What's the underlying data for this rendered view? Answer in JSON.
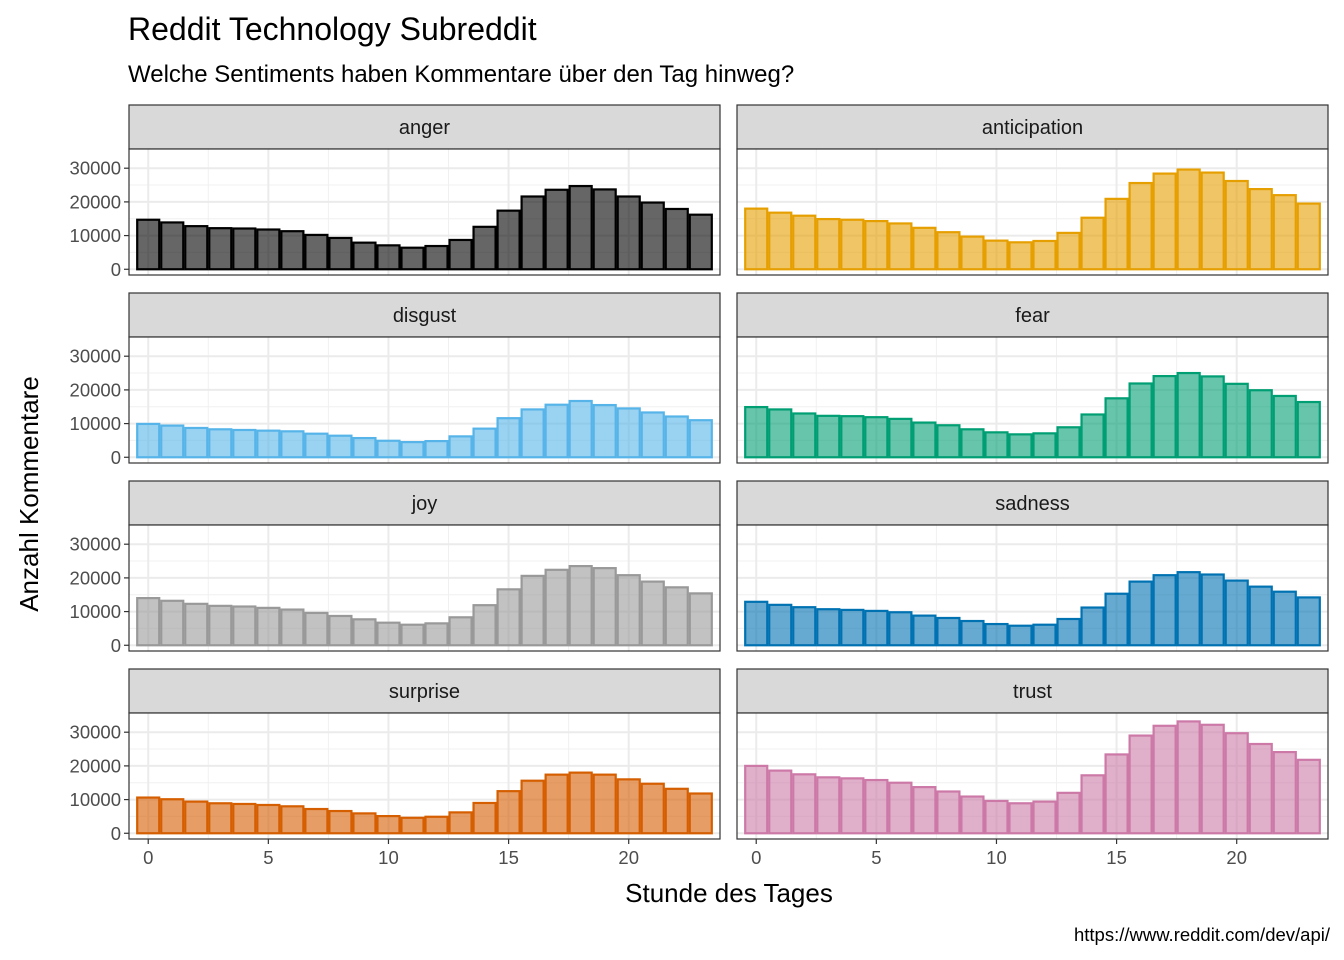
{
  "chart_data": {
    "type": "bar",
    "title": "Reddit Technology Subreddit",
    "subtitle": "Welche Sentiments haben Kommentare über den Tag hinweg?",
    "xlabel": "Stunde des Tages",
    "ylabel": "Anzahl Kommentare",
    "caption": "https://www.reddit.com/dev/api/",
    "x_ticks": [
      "0",
      "5",
      "10",
      "15",
      "20"
    ],
    "y_ticks": [
      "0",
      "10000",
      "20000",
      "30000"
    ],
    "xlim": [
      -0.8,
      23.8
    ],
    "ylim": [
      -1700,
      35700
    ],
    "grid": true,
    "legend": "none",
    "x": [
      0,
      1,
      2,
      3,
      4,
      5,
      6,
      7,
      8,
      9,
      10,
      11,
      12,
      13,
      14,
      15,
      16,
      17,
      18,
      19,
      20,
      21,
      22,
      23
    ],
    "panels": [
      {
        "name": "anger",
        "fill": "#000000",
        "stroke": "#000000",
        "values": [
          14700,
          13900,
          12800,
          12200,
          12100,
          11800,
          11300,
          10200,
          9300,
          7900,
          7100,
          6400,
          6900,
          8700,
          12600,
          17400,
          21600,
          23600,
          24700,
          23700,
          21600,
          19800,
          17900,
          16200
        ]
      },
      {
        "name": "anticipation",
        "fill": "#E69F00",
        "stroke": "#E69F00",
        "values": [
          18000,
          16800,
          15900,
          14900,
          14700,
          14300,
          13600,
          12300,
          11000,
          9700,
          8500,
          8000,
          8400,
          10800,
          15300,
          20900,
          25600,
          28400,
          29600,
          28700,
          26200,
          23800,
          22000,
          19500
        ]
      },
      {
        "name": "disgust",
        "fill": "#56B4E9",
        "stroke": "#56B4E9",
        "values": [
          9900,
          9400,
          8700,
          8300,
          8100,
          7900,
          7700,
          7000,
          6400,
          5700,
          4900,
          4500,
          4800,
          6200,
          8500,
          11600,
          14200,
          15600,
          16700,
          15500,
          14500,
          13300,
          12100,
          11000
        ]
      },
      {
        "name": "fear",
        "fill": "#009E73",
        "stroke": "#009E73",
        "values": [
          14900,
          14200,
          13000,
          12300,
          12200,
          11900,
          11400,
          10300,
          9500,
          8300,
          7400,
          6800,
          7100,
          8900,
          12700,
          17500,
          21900,
          24100,
          25000,
          24000,
          21800,
          19900,
          18200,
          16400
        ]
      },
      {
        "name": "joy",
        "fill": "#999999",
        "stroke": "#999999",
        "values": [
          14000,
          13200,
          12300,
          11700,
          11500,
          11100,
          10600,
          9600,
          8700,
          7700,
          6700,
          6100,
          6500,
          8300,
          11900,
          16600,
          20600,
          22400,
          23500,
          22900,
          20800,
          18900,
          17200,
          15400
        ]
      },
      {
        "name": "sadness",
        "fill": "#0072B2",
        "stroke": "#0072B2",
        "values": [
          12900,
          12000,
          11300,
          10700,
          10500,
          10200,
          9800,
          8800,
          8100,
          7200,
          6300,
          5800,
          6100,
          7800,
          11200,
          15300,
          18900,
          20800,
          21700,
          21000,
          19200,
          17400,
          15900,
          14200
        ]
      },
      {
        "name": "surprise",
        "fill": "#D55E00",
        "stroke": "#D55E00",
        "values": [
          10600,
          10100,
          9400,
          8900,
          8700,
          8400,
          8000,
          7200,
          6600,
          5900,
          5100,
          4600,
          4900,
          6200,
          9000,
          12500,
          15600,
          17400,
          18000,
          17400,
          16000,
          14700,
          13200,
          11800
        ]
      },
      {
        "name": "trust",
        "fill": "#CC79A7",
        "stroke": "#CC79A7",
        "values": [
          20000,
          18600,
          17500,
          16600,
          16300,
          15800,
          15000,
          13700,
          12400,
          10900,
          9600,
          8900,
          9400,
          12000,
          17200,
          23400,
          29000,
          31900,
          33200,
          32200,
          29700,
          26500,
          24100,
          21800
        ]
      }
    ]
  }
}
